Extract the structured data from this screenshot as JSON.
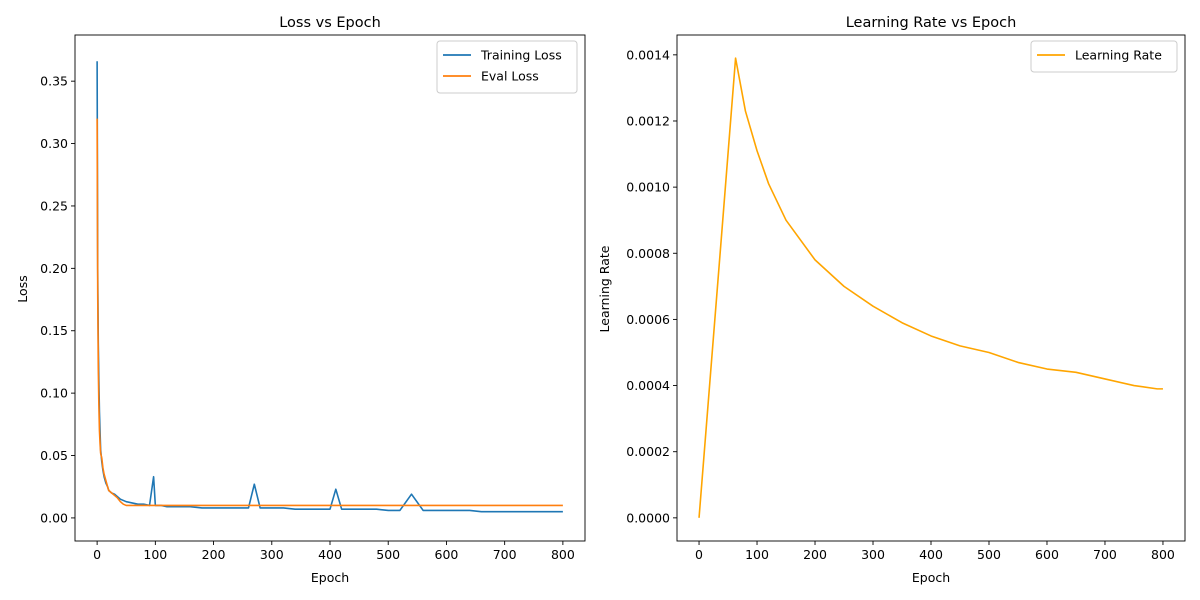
{
  "chart_data": [
    {
      "type": "line",
      "title": "Loss vs Epoch",
      "xlabel": "Epoch",
      "ylabel": "Loss",
      "xlim": [
        -38,
        838
      ],
      "ylim": [
        -0.0185,
        0.387
      ],
      "xticks": [
        0,
        100,
        200,
        300,
        400,
        500,
        600,
        700,
        800
      ],
      "yticks": [
        0.0,
        0.05,
        0.1,
        0.15,
        0.2,
        0.25,
        0.3,
        0.35
      ],
      "ytick_labels": [
        "0.00",
        "0.05",
        "0.10",
        "0.15",
        "0.20",
        "0.25",
        "0.30",
        "0.35"
      ],
      "grid": false,
      "legend_position": "top-right",
      "series": [
        {
          "name": "Training Loss",
          "color": "#1f77b4",
          "x": [
            0,
            1,
            2,
            3,
            4,
            5,
            6,
            8,
            10,
            12,
            15,
            18,
            20,
            25,
            30,
            35,
            40,
            45,
            50,
            60,
            70,
            80,
            90,
            97,
            100,
            110,
            120,
            140,
            150,
            160,
            180,
            200,
            220,
            240,
            260,
            270,
            280,
            300,
            320,
            340,
            360,
            380,
            400,
            410,
            420,
            440,
            460,
            480,
            500,
            520,
            540,
            560,
            580,
            600,
            620,
            640,
            660,
            680,
            700,
            720,
            740,
            760,
            780,
            800
          ],
          "y": [
            0.366,
            0.2,
            0.14,
            0.11,
            0.085,
            0.07,
            0.055,
            0.045,
            0.038,
            0.033,
            0.028,
            0.025,
            0.022,
            0.02,
            0.019,
            0.017,
            0.015,
            0.014,
            0.013,
            0.012,
            0.011,
            0.011,
            0.01,
            0.033,
            0.01,
            0.01,
            0.009,
            0.009,
            0.009,
            0.009,
            0.008,
            0.008,
            0.008,
            0.008,
            0.008,
            0.027,
            0.008,
            0.008,
            0.008,
            0.007,
            0.007,
            0.007,
            0.007,
            0.023,
            0.007,
            0.007,
            0.007,
            0.007,
            0.006,
            0.006,
            0.019,
            0.006,
            0.006,
            0.006,
            0.006,
            0.006,
            0.005,
            0.005,
            0.005,
            0.005,
            0.005,
            0.005,
            0.005,
            0.005
          ]
        },
        {
          "name": "Eval Loss",
          "color": "#ff7f0e",
          "x": [
            0,
            1,
            2,
            3,
            4,
            5,
            6,
            8,
            10,
            12,
            15,
            18,
            20,
            25,
            30,
            35,
            40,
            45,
            50,
            60,
            70,
            80,
            100,
            120,
            140,
            160,
            180,
            200,
            220,
            240,
            260,
            280,
            300,
            320,
            340,
            360,
            380,
            400,
            420,
            440,
            460,
            480,
            500,
            520,
            540,
            560,
            580,
            600,
            620,
            640,
            660,
            680,
            700,
            720,
            740,
            760,
            780,
            800
          ],
          "y": [
            0.32,
            0.18,
            0.12,
            0.09,
            0.07,
            0.06,
            0.052,
            0.048,
            0.04,
            0.035,
            0.03,
            0.025,
            0.022,
            0.02,
            0.018,
            0.016,
            0.013,
            0.011,
            0.01,
            0.01,
            0.01,
            0.01,
            0.01,
            0.01,
            0.01,
            0.01,
            0.01,
            0.01,
            0.01,
            0.01,
            0.01,
            0.01,
            0.01,
            0.01,
            0.01,
            0.01,
            0.01,
            0.01,
            0.01,
            0.01,
            0.01,
            0.01,
            0.01,
            0.01,
            0.01,
            0.01,
            0.01,
            0.01,
            0.01,
            0.01,
            0.01,
            0.01,
            0.01,
            0.01,
            0.01,
            0.01,
            0.01,
            0.01
          ]
        }
      ]
    },
    {
      "type": "line",
      "title": "Learning Rate vs Epoch",
      "xlabel": "Epoch",
      "ylabel": "Learning Rate",
      "xlim": [
        -38,
        838
      ],
      "ylim": [
        -7e-05,
        0.00146
      ],
      "xticks": [
        0,
        100,
        200,
        300,
        400,
        500,
        600,
        700,
        800
      ],
      "yticks": [
        0,
        0.0002,
        0.0004,
        0.0006,
        0.0008,
        0.001,
        0.0012,
        0.0014
      ],
      "ytick_labels": [
        "0.0000",
        "0.0002",
        "0.0004",
        "0.0006",
        "0.0008",
        "0.0010",
        "0.0012",
        "0.0014"
      ],
      "grid": false,
      "legend_position": "top-right",
      "series": [
        {
          "name": "Learning Rate",
          "color": "#ffa500",
          "x": [
            0,
            20,
            40,
            63,
            80,
            100,
            120,
            150,
            200,
            250,
            300,
            350,
            400,
            450,
            500,
            550,
            600,
            650,
            700,
            750,
            790,
            800
          ],
          "y": [
            0.0,
            0.00044,
            0.00088,
            0.00139,
            0.00123,
            0.00111,
            0.00101,
            0.0009,
            0.00078,
            0.0007,
            0.00064,
            0.00059,
            0.00055,
            0.00052,
            0.0005,
            0.00047,
            0.00045,
            0.00044,
            0.00042,
            0.0004,
            0.00039,
            0.00039
          ]
        }
      ]
    }
  ]
}
